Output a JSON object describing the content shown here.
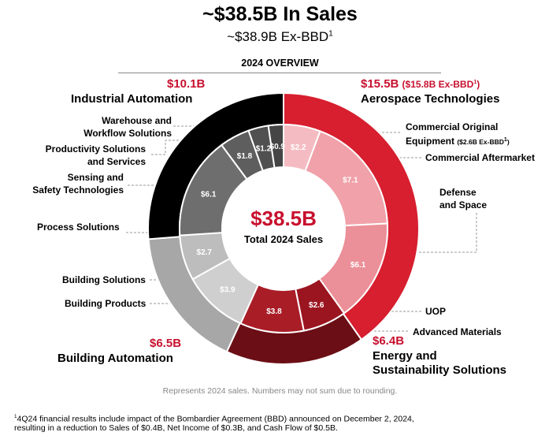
{
  "title": "~$38.5B In Sales",
  "subtitle_main": "~$38.9B Ex-BBD",
  "subtitle_sup": "1",
  "overview_label": "2024 OVERVIEW",
  "segments": {
    "industrial": {
      "value": "$10.1B",
      "title": "Industrial Automation"
    },
    "aerospace": {
      "value": "$15.5B",
      "value_extra": "($15.8B Ex-BBD",
      "value_extra_sup": "1",
      "value_extra_close": ")",
      "title": "Aerospace Technologies"
    },
    "building": {
      "value": "$6.5B",
      "title": "Building Automation"
    },
    "energy": {
      "value": "$6.4B",
      "title_line1": "Energy and",
      "title_line2": "Sustainability Solutions"
    }
  },
  "sub_labels": {
    "warehouse": [
      "Warehouse and",
      "Workflow Solutions"
    ],
    "productivity": [
      "Productivity Solutions",
      "and Services"
    ],
    "sensing": [
      "Sensing and",
      "Safety Technologies"
    ],
    "process": "Process Solutions",
    "building_solutions": "Building Solutions",
    "building_products": "Building Products",
    "coe": [
      "Commercial Original",
      "Equipment"
    ],
    "coe_note": "($2.6B Ex-BBD",
    "coe_note_sup": "1",
    "coe_note_close": ")",
    "aftermarket": "Commercial Aftermarket",
    "defense": [
      "Defense",
      "and Space"
    ],
    "uop": "UOP",
    "advanced_materials": "Advanced Materials"
  },
  "center": {
    "value": "$38.5B",
    "label": "Total 2024 Sales"
  },
  "footnote": "Represents 2024 sales. Numbers may not sum due to rounding.",
  "note_sup": "1",
  "note_line1": "4Q24 financial results include impact of the Bombardier Agreement (BBD) announced on December 2, 2024,",
  "note_line2": "resulting in a reduction to Sales of $0.4B, Net Income of $0.3B, and Cash Flow of $0.5B.",
  "chart_data": {
    "type": "pie",
    "subtype": "nested-donut",
    "title": "~$38.5B In Sales",
    "total": 38.5,
    "outer_ring": [
      {
        "name": "Aerospace Technologies",
        "value": 15.5,
        "color": "#d71f2f"
      },
      {
        "name": "Energy and Sustainability Solutions",
        "value": 6.4,
        "color": "#6b0e15"
      },
      {
        "name": "Building Automation",
        "value": 6.5,
        "color": "#a7a7a7"
      },
      {
        "name": "Industrial Automation",
        "value": 10.1,
        "color": "#000000"
      }
    ],
    "inner_ring": [
      {
        "name": "Commercial Original Equipment",
        "parent": "Aerospace Technologies",
        "value": 2.2,
        "label": "$2.2",
        "color": "#f4bcc2"
      },
      {
        "name": "Commercial Aftermarket",
        "parent": "Aerospace Technologies",
        "value": 7.1,
        "label": "$7.1",
        "color": "#f0a1a9"
      },
      {
        "name": "Defense and Space",
        "parent": "Aerospace Technologies",
        "value": 6.1,
        "label": "$6.1",
        "color": "#eb8f98"
      },
      {
        "name": "UOP",
        "parent": "Energy and Sustainability Solutions",
        "value": 2.6,
        "label": "$2.6",
        "color": "#9b1520"
      },
      {
        "name": "Advanced Materials",
        "parent": "Energy and Sustainability Solutions",
        "value": 3.8,
        "label": "$3.8",
        "color": "#a91d27"
      },
      {
        "name": "Building Products",
        "parent": "Building Automation",
        "value": 3.9,
        "label": "$3.9",
        "color": "#cfcfcf"
      },
      {
        "name": "Building Solutions",
        "parent": "Building Automation",
        "value": 2.7,
        "label": "$2.7",
        "color": "#bdbdbd"
      },
      {
        "name": "Process Solutions",
        "parent": "Industrial Automation",
        "value": 6.1,
        "label": "$6.1",
        "color": "#6e6e6e"
      },
      {
        "name": "Sensing and Safety Technologies",
        "parent": "Industrial Automation",
        "value": 1.8,
        "label": "$1.8",
        "color": "#5e5e5e"
      },
      {
        "name": "Productivity Solutions and Services",
        "parent": "Industrial Automation",
        "value": 1.2,
        "label": "$1.2",
        "color": "#505050"
      },
      {
        "name": "Warehouse and Workflow Solutions",
        "parent": "Industrial Automation",
        "value": 0.9,
        "label": "$0.9",
        "color": "#454545"
      }
    ]
  }
}
